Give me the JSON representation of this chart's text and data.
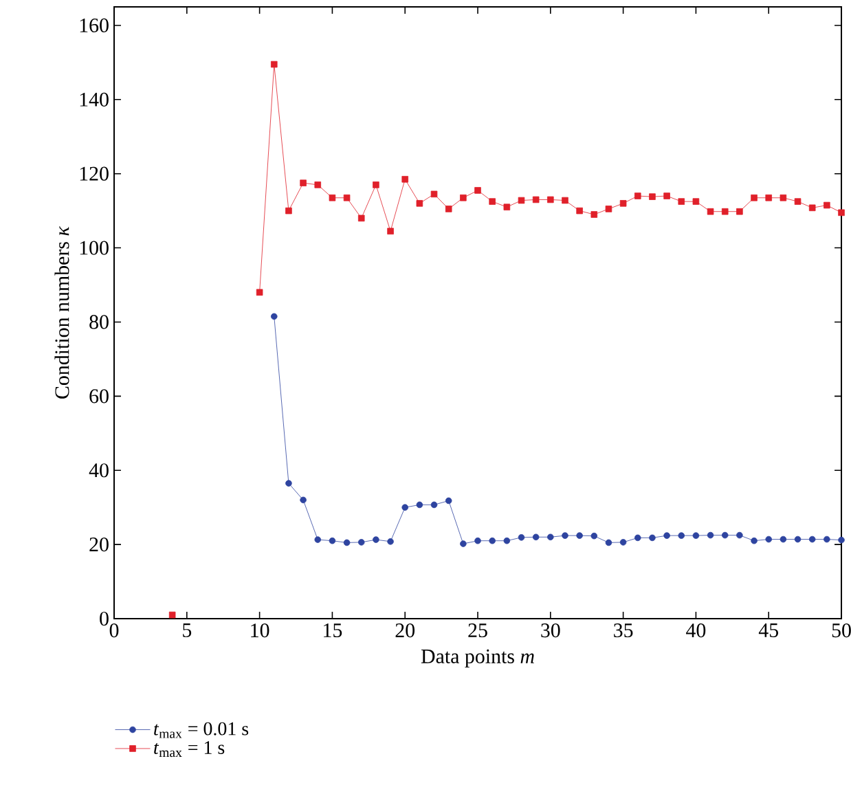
{
  "chart_data": {
    "type": "line",
    "xlabel": "Data points *m*",
    "ylabel": "Condition numbers *κ*",
    "xlim": [
      0,
      50
    ],
    "ylim": [
      0,
      165
    ],
    "xticks": [
      0,
      5,
      10,
      15,
      20,
      25,
      30,
      35,
      40,
      45,
      50
    ],
    "yticks": [
      0,
      20,
      40,
      60,
      80,
      100,
      120,
      140,
      160
    ],
    "grid": false,
    "legend": "bottom left",
    "line_style": "solid",
    "series": [
      {
        "name": "*t*$_{max}$ = 0.01 s",
        "color": "#2e44a0",
        "marker": "circle",
        "x": [
          11,
          12,
          13,
          14,
          15,
          16,
          17,
          18,
          19,
          20,
          21,
          22,
          23,
          24,
          25,
          26,
          27,
          28,
          29,
          30,
          31,
          32,
          33,
          34,
          35,
          36,
          37,
          38,
          39,
          40,
          41,
          42,
          43,
          44,
          45,
          46,
          47,
          48,
          49,
          50
        ],
        "values": [
          81.5,
          36.5,
          32,
          21.3,
          21,
          20.5,
          20.6,
          21.3,
          20.8,
          30,
          30.7,
          30.7,
          31.8,
          20.2,
          21,
          21,
          21,
          21.9,
          22,
          22,
          22.4,
          22.4,
          22.3,
          20.5,
          20.6,
          21.8,
          21.8,
          22.4,
          22.4,
          22.4,
          22.5,
          22.5,
          22.5,
          21,
          21.4,
          21.4,
          21.4,
          21.4,
          21.4,
          21.2
        ]
      },
      {
        "name": "*t*$_{max}$ = 1 s",
        "color": "#e0202a",
        "marker": "square",
        "x": [
          4,
          5,
          6,
          7,
          8,
          9,
          10,
          11,
          12,
          13,
          14,
          15,
          16,
          17,
          18,
          19,
          20,
          21,
          22,
          23,
          24,
          25,
          26,
          27,
          28,
          29,
          30,
          31,
          32,
          33,
          34,
          35,
          36,
          37,
          38,
          39,
          40,
          41,
          42,
          43,
          44,
          45,
          46,
          47,
          48,
          49,
          50
        ],
        "values": [
          1,
          null,
          null,
          null,
          null,
          null,
          88,
          149.5,
          110,
          117.5,
          117,
          113.5,
          113.5,
          108,
          117,
          104.5,
          118.5,
          112,
          114.5,
          110.5,
          113.5,
          115.5,
          112.5,
          111,
          112.8,
          113,
          113,
          112.8,
          110,
          109,
          110.5,
          112,
          114,
          113.8,
          114,
          112.5,
          112.5,
          109.8,
          109.8,
          109.8,
          113.5,
          113.5,
          113.5,
          112.5,
          110.8,
          111.5,
          109.5
        ]
      }
    ]
  }
}
